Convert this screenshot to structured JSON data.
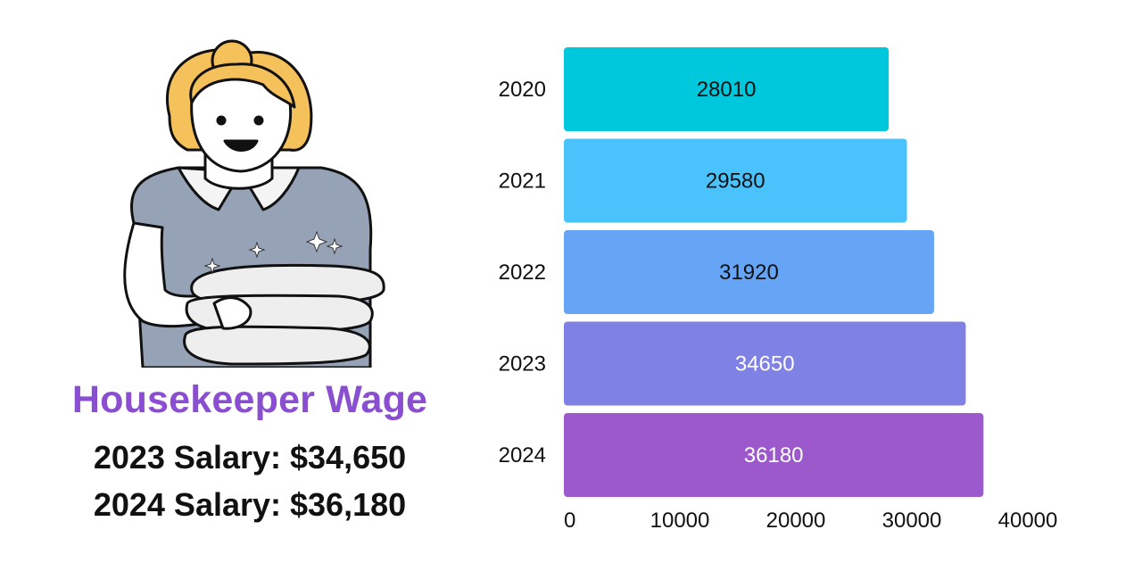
{
  "title": "Housekeeper Wage",
  "salaries": {
    "line_2023": "2023 Salary: $34,650",
    "line_2024": "2024 Salary: $36,180"
  },
  "illustration": "housekeeper holding folded towels",
  "chart_data": {
    "type": "bar",
    "orientation": "horizontal",
    "categories": [
      "2020",
      "2021",
      "2022",
      "2023",
      "2024"
    ],
    "values": [
      28010,
      29580,
      31920,
      34650,
      36180
    ],
    "xlim": [
      0,
      40000
    ],
    "xticks": [
      0,
      10000,
      20000,
      30000,
      40000
    ],
    "xlabel": "",
    "ylabel": "",
    "grid": false,
    "bar_colors": [
      "#00c8dc",
      "#4ac3fd",
      "#66a5f5",
      "#7f82e4",
      "#9b59cc"
    ],
    "label_colors": [
      "#111111",
      "#111111",
      "#111111",
      "#ffffff",
      "#ffffff"
    ]
  }
}
